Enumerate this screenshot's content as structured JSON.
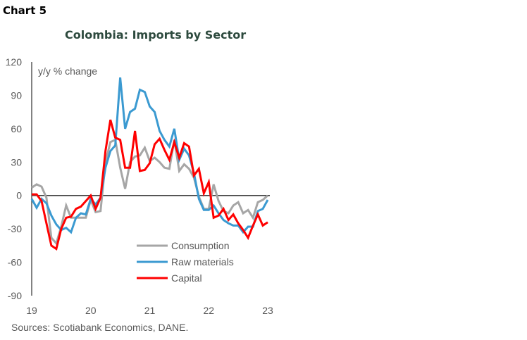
{
  "header": {
    "chart_label": "Chart 5"
  },
  "chart_data": {
    "type": "line",
    "title": "Colombia: Imports by Sector",
    "ylabel": "y/y % change",
    "xlabel": "",
    "ylim": [
      -90,
      120
    ],
    "yticks": [
      "120",
      "90",
      "60",
      "30",
      "0",
      "-30",
      "-60",
      "-90"
    ],
    "ytick_values": [
      120,
      90,
      60,
      30,
      0,
      -30,
      -60,
      -90
    ],
    "xticks": [
      "19",
      "20",
      "21",
      "22",
      "23"
    ],
    "xtick_index": [
      0,
      12,
      24,
      36,
      48
    ],
    "grid": false,
    "legend": "bottom-center",
    "series": [
      {
        "name": "Consumption",
        "color": "#a6a6a6",
        "values": [
          7,
          10,
          8,
          -2,
          -38,
          -43,
          -28,
          -9,
          -20,
          -20,
          -20,
          -20,
          -4,
          -15,
          -14,
          30,
          48,
          50,
          25,
          6,
          30,
          35,
          36,
          43,
          31,
          34,
          30,
          25,
          24,
          50,
          22,
          28,
          24,
          16,
          -1,
          -12,
          -12,
          10,
          -5,
          -14,
          -16,
          -9,
          -6,
          -16,
          -13,
          -20,
          -6,
          -4,
          0
        ]
      },
      {
        "name": "Raw materials",
        "color": "#3b9ad1",
        "values": [
          -3,
          -11,
          -3,
          -7,
          -18,
          -26,
          -31,
          -29,
          -33,
          -20,
          -16,
          -17,
          -3,
          -8,
          -2,
          25,
          40,
          45,
          106,
          60,
          75,
          78,
          95,
          93,
          80,
          75,
          58,
          50,
          44,
          60,
          32,
          42,
          36,
          20,
          -3,
          -13,
          -13,
          -9,
          -16,
          -22,
          -25,
          -27,
          -27,
          -33,
          -28,
          -28,
          -14,
          -12,
          -4
        ]
      },
      {
        "name": "Capital",
        "color": "#ff0000",
        "values": [
          1,
          1,
          -5,
          -25,
          -45,
          -48,
          -30,
          -20,
          -19,
          -12,
          -10,
          -5,
          0,
          -12,
          -2,
          40,
          68,
          52,
          50,
          25,
          25,
          58,
          22,
          23,
          29,
          46,
          51,
          41,
          32,
          48,
          34,
          47,
          44,
          18,
          24,
          2,
          12,
          -20,
          -18,
          -12,
          -22,
          -17,
          -25,
          -31,
          -38,
          -27,
          -17,
          -27,
          -24
        ]
      }
    ],
    "zero_line": true
  },
  "footer": {
    "source": "Sources: Scotiabank Economics, DANE."
  }
}
